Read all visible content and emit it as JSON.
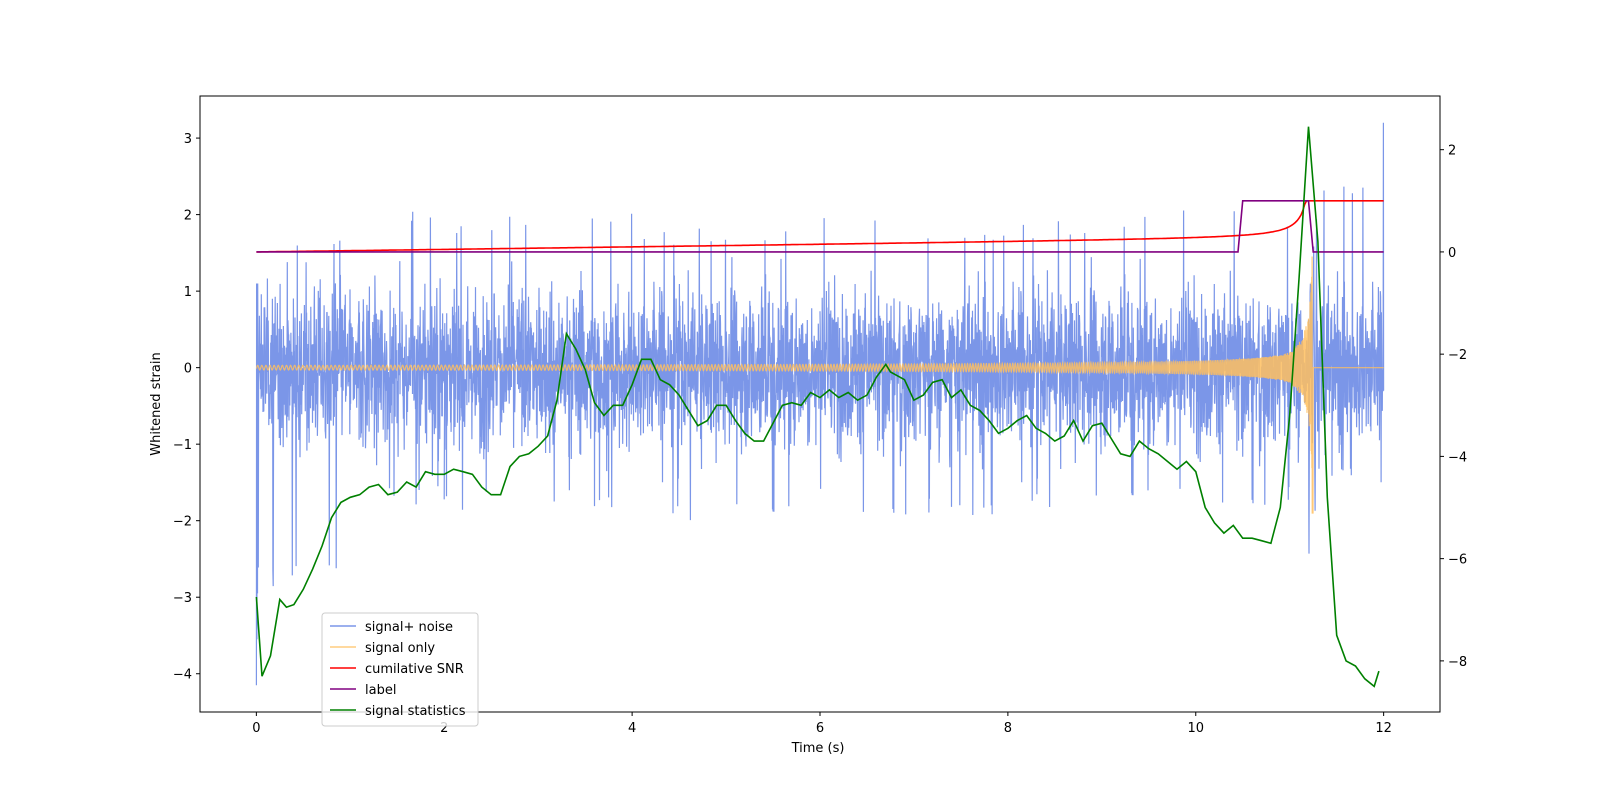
{
  "chart_data": {
    "type": "line",
    "title": "",
    "xlabel": "Time (s)",
    "ylabel": "Whitened strain",
    "xlim": [
      -0.6,
      12.6
    ],
    "ylim": [
      -4.5,
      3.55
    ],
    "y2lim": [
      -9.0,
      3.05
    ],
    "xticks": [
      0,
      2,
      4,
      6,
      8,
      10,
      12
    ],
    "yticks": [
      -4,
      -3,
      -2,
      -1,
      0,
      1,
      2,
      3
    ],
    "y2ticks": [
      -8,
      -6,
      -4,
      -2,
      0,
      2
    ],
    "grid": false,
    "legend_position": "lower-left",
    "series": [
      {
        "name": "signal+ noise",
        "color": "#7b96e8",
        "axis": "left",
        "description": "dense noisy trace mostly between -1.6 and 1.6, spikes to 3.2 at t=12 and -4.15 at t=0",
        "envelope_time": [
          0,
          1,
          2,
          3,
          4,
          5,
          6,
          7,
          8,
          9,
          10,
          11,
          12
        ],
        "envelope_max": [
          1.2,
          2.18,
          2.0,
          2.18,
          2.05,
          1.7,
          2.05,
          1.9,
          1.95,
          2.0,
          2.15,
          2.05,
          3.2
        ],
        "envelope_min": [
          -4.15,
          -1.7,
          -1.9,
          -1.85,
          -1.9,
          -2.15,
          -1.8,
          -2.05,
          -1.9,
          -1.8,
          -1.7,
          -1.9,
          -1.0
        ]
      },
      {
        "name": "signal only",
        "color": "#ffbf5f",
        "axis": "left",
        "description": "chirp near zero growing in amplitude to t=11.25 then flat",
        "chirp_end": 11.25,
        "final_min": -1.9,
        "final_max": 1.45
      },
      {
        "name": "cumilative SNR",
        "color": "#ff0000",
        "axis": "right",
        "x": [
          0,
          2,
          4,
          6,
          8,
          9,
          10,
          10.5,
          10.8,
          11.0,
          11.1,
          11.2,
          11.25,
          12
        ],
        "y": [
          0.0,
          0.05,
          0.08,
          0.12,
          0.17,
          0.2,
          0.27,
          0.35,
          0.45,
          0.58,
          0.72,
          0.88,
          1.0,
          1.0
        ]
      },
      {
        "name": "label",
        "color": "#800080",
        "axis": "right",
        "x": [
          0,
          10.45,
          10.5,
          11.2,
          11.25,
          12
        ],
        "y": [
          0,
          0,
          1,
          1,
          0,
          0
        ]
      },
      {
        "name": "signal statistics",
        "color": "#008000",
        "axis": "right",
        "x": [
          0,
          0.06,
          0.15,
          0.25,
          0.32,
          0.4,
          0.5,
          0.6,
          0.7,
          0.8,
          0.9,
          1.0,
          1.1,
          1.2,
          1.3,
          1.4,
          1.5,
          1.6,
          1.7,
          1.8,
          1.9,
          2.0,
          2.1,
          2.2,
          2.3,
          2.4,
          2.5,
          2.6,
          2.7,
          2.8,
          2.9,
          3.0,
          3.1,
          3.2,
          3.3,
          3.4,
          3.5,
          3.6,
          3.7,
          3.8,
          3.9,
          4.0,
          4.1,
          4.2,
          4.3,
          4.4,
          4.5,
          4.6,
          4.7,
          4.8,
          4.9,
          5.0,
          5.1,
          5.2,
          5.3,
          5.4,
          5.5,
          5.6,
          5.7,
          5.8,
          5.9,
          6.0,
          6.1,
          6.2,
          6.3,
          6.4,
          6.5,
          6.6,
          6.7,
          6.75,
          6.8,
          6.9,
          7.0,
          7.1,
          7.2,
          7.3,
          7.4,
          7.5,
          7.6,
          7.7,
          7.8,
          7.9,
          8.0,
          8.1,
          8.2,
          8.3,
          8.4,
          8.5,
          8.6,
          8.7,
          8.8,
          8.9,
          9.0,
          9.1,
          9.2,
          9.3,
          9.4,
          9.5,
          9.6,
          9.7,
          9.8,
          9.9,
          10.0,
          10.1,
          10.2,
          10.3,
          10.4,
          10.5,
          10.6,
          10.7,
          10.8,
          10.9,
          11.0,
          11.1,
          11.2,
          11.3,
          11.4,
          11.5,
          11.6,
          11.7,
          11.8,
          11.9,
          11.95
        ],
        "y": [
          -6.75,
          -8.3,
          -7.9,
          -6.8,
          -6.95,
          -6.9,
          -6.6,
          -6.2,
          -5.75,
          -5.2,
          -4.9,
          -4.8,
          -4.75,
          -4.6,
          -4.55,
          -4.75,
          -4.7,
          -4.5,
          -4.6,
          -4.3,
          -4.35,
          -4.35,
          -4.25,
          -4.3,
          -4.35,
          -4.6,
          -4.75,
          -4.75,
          -4.2,
          -4.0,
          -3.95,
          -3.8,
          -3.6,
          -2.9,
          -1.6,
          -1.9,
          -2.3,
          -2.95,
          -3.2,
          -3.0,
          -3.0,
          -2.6,
          -2.1,
          -2.1,
          -2.5,
          -2.6,
          -2.8,
          -3.1,
          -3.4,
          -3.3,
          -3.0,
          -3.0,
          -3.3,
          -3.55,
          -3.7,
          -3.7,
          -3.35,
          -3.0,
          -2.95,
          -3.0,
          -2.75,
          -2.85,
          -2.7,
          -2.85,
          -2.75,
          -2.9,
          -2.8,
          -2.45,
          -2.2,
          -2.35,
          -2.4,
          -2.5,
          -2.9,
          -2.8,
          -2.55,
          -2.5,
          -2.85,
          -2.7,
          -3.0,
          -3.1,
          -3.3,
          -3.55,
          -3.45,
          -3.3,
          -3.2,
          -3.45,
          -3.55,
          -3.7,
          -3.6,
          -3.3,
          -3.7,
          -3.4,
          -3.35,
          -3.65,
          -3.95,
          -4.0,
          -3.7,
          -3.85,
          -3.95,
          -4.1,
          -4.25,
          -4.1,
          -4.3,
          -5.0,
          -5.3,
          -5.5,
          -5.35,
          -5.6,
          -5.6,
          -5.65,
          -5.7,
          -5.0,
          -3.2,
          -0.5,
          2.45,
          0.2,
          -4.8,
          -7.5,
          -8.0,
          -8.1,
          -8.35,
          -8.5,
          -8.2
        ]
      }
    ]
  }
}
